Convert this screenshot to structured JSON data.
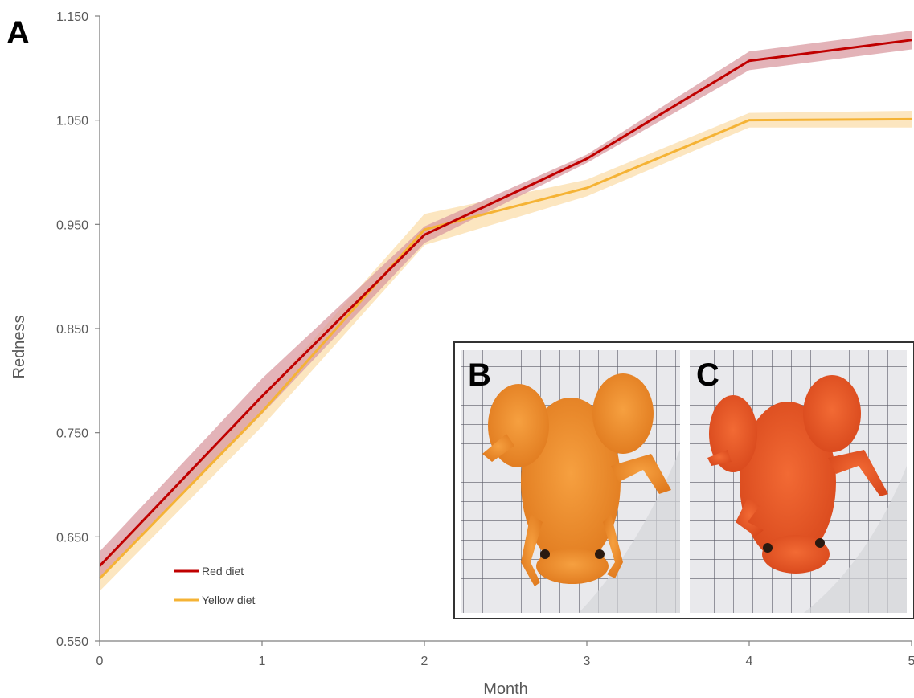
{
  "panel_label": "A",
  "inset": {
    "photo_b_label": "B",
    "photo_c_label": "C"
  },
  "colors": {
    "red_series": "#c00000",
    "red_band": "#d99aa0",
    "yellow_series": "#f5b335",
    "yellow_band": "#fbe0b0",
    "axis": "#7f7f7f",
    "frog_b": "#f08a2a",
    "frog_c": "#ec5a28"
  },
  "chart_data": {
    "type": "line",
    "xlabel": "Month",
    "ylabel": "Redness",
    "x": [
      0,
      1,
      2,
      3,
      4,
      5
    ],
    "x_tick_labels": [
      "0",
      "1",
      "2",
      "3",
      "4",
      "5"
    ],
    "y_tick_labels": [
      "0.550",
      "0.650",
      "0.750",
      "0.850",
      "0.950",
      "1.050",
      "1.150"
    ],
    "ylim": [
      0.55,
      1.15
    ],
    "xlim": [
      0,
      5
    ],
    "grid": false,
    "legend_position": "bottom-left",
    "series": [
      {
        "name": "Red diet",
        "values": [
          0.622,
          0.785,
          0.94,
          1.013,
          1.107,
          1.127
        ],
        "lower": [
          0.61,
          0.768,
          0.932,
          1.009,
          1.098,
          1.118
        ],
        "upper": [
          0.636,
          0.802,
          0.948,
          1.017,
          1.116,
          1.136
        ]
      },
      {
        "name": "Yellow diet",
        "values": [
          0.61,
          0.77,
          0.945,
          0.985,
          1.05,
          1.051
        ],
        "lower": [
          0.598,
          0.756,
          0.93,
          0.977,
          1.043,
          1.043
        ],
        "upper": [
          0.622,
          0.784,
          0.96,
          0.993,
          1.057,
          1.059
        ]
      }
    ]
  }
}
